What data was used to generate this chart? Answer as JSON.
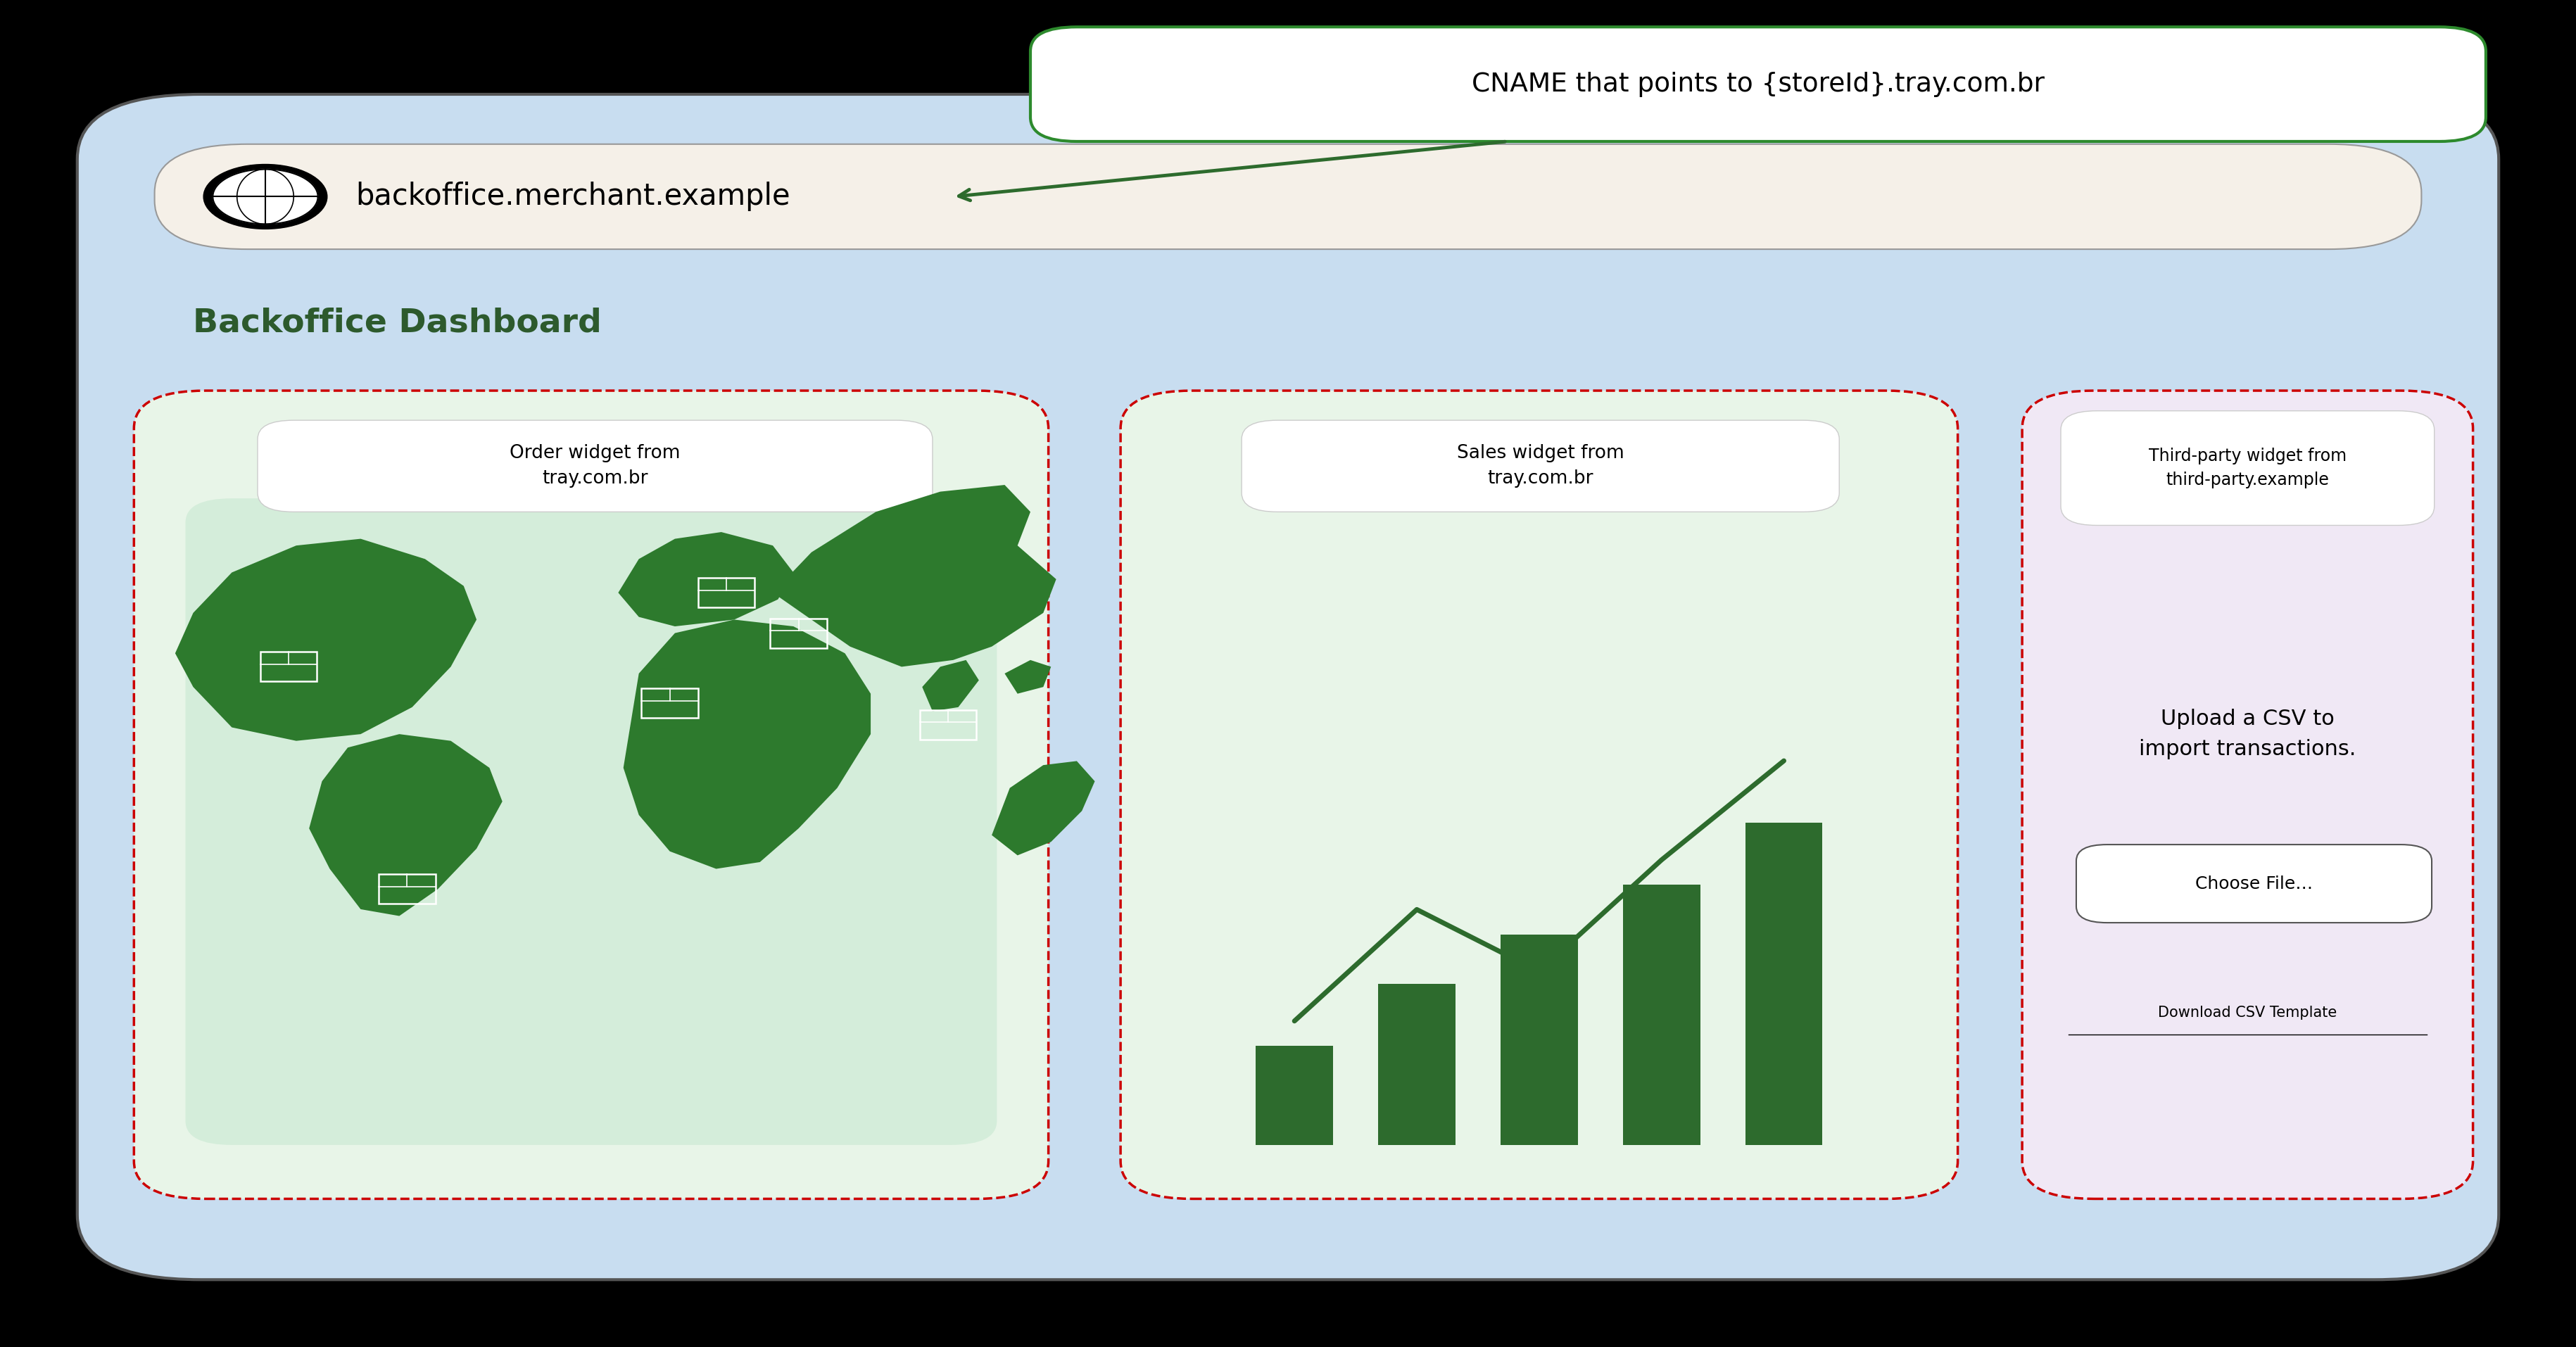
{
  "bg_color": "#000000",
  "browser_bg": "#c8ddf0",
  "browser_border": "#555555",
  "url_bar_bg": "#f5f0e8",
  "url_bar_border": "#999999",
  "url_text": "backoffice.merchant.example",
  "dashboard_title": "Backoffice Dashboard",
  "dashboard_title_color": "#2d5a2d",
  "cname_box_text": "CNAME that points to {storeId}.tray.com.br",
  "cname_box_bg": "#ffffff",
  "cname_box_border": "#2d8a2d",
  "arrow_color": "#2d6b2d",
  "widget1_label": "Order widget from\ntray.com.br",
  "widget2_label": "Sales widget from\ntray.com.br",
  "widget3_label": "Third-party widget from\nthird-party.example",
  "widget3_upload_text": "Upload a CSV to\nimport transactions.",
  "widget3_button_text": "Choose File…",
  "widget3_link_text": "Download CSV Template",
  "widget_border_color": "#cc0000",
  "widget1_bg": "#e8f5e8",
  "widget2_bg": "#e8f5e8",
  "widget3_bg": "#f0e8f5",
  "widget_label_bg": "#ffffff",
  "green_dark": "#2d6b2d",
  "green_map": "#2d7a2d",
  "green_chart": "#2d6b2d"
}
